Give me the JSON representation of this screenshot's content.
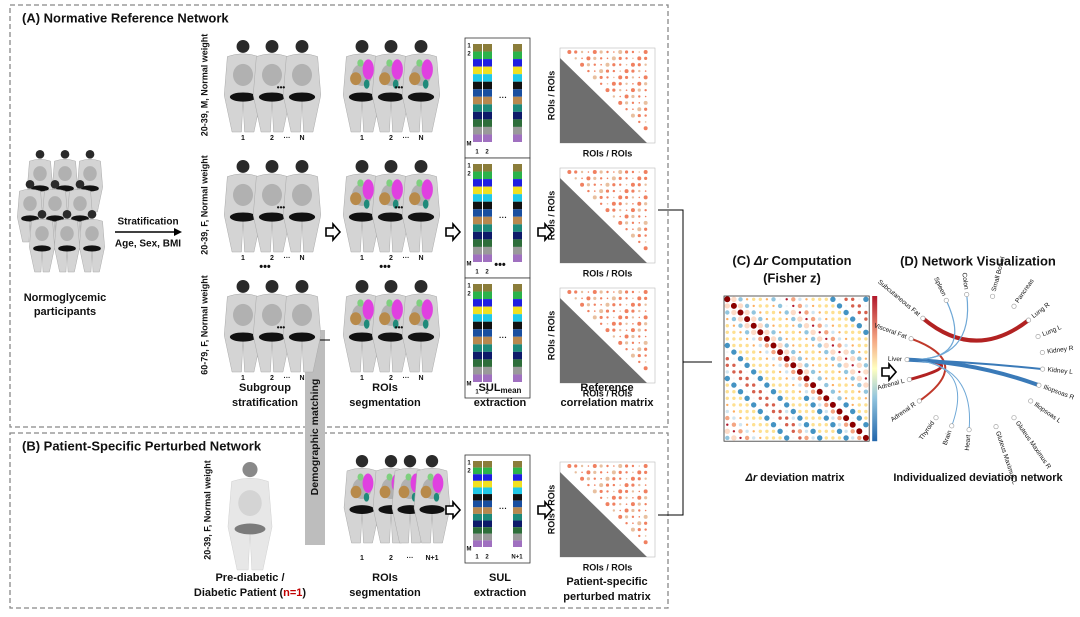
{
  "panel_a": {
    "title": "(A) Normative Reference Network"
  },
  "panel_b": {
    "title": "(B) Patient-Specific Perturbed Network"
  },
  "panel_c": {
    "title_prefix": "(C) ",
    "title_symbol": "Δr",
    "title_rest": " Computation",
    "subtitle": "(Fisher z)",
    "caption_symbol": "Δr",
    "caption_rest": " deviation matrix"
  },
  "panel_d": {
    "title": "(D) Network Visualization",
    "caption": "Individualized deviation network",
    "nodes": [
      "Spleen",
      "Colon",
      "Small Bowel",
      "Pancreas",
      "Lung R",
      "Lung L",
      "Kidney R",
      "Kidney L",
      "Iliopsoas R",
      "Iliopsoas L",
      "Gluteus Maximus R",
      "Gluteus Maximus L",
      "Heart",
      "Brain",
      "Thyroid",
      "Adrenal R",
      "Adrenal L",
      "Liver",
      "Visceral Fat",
      "Subcutaneous Fat"
    ]
  },
  "cohort": [
    "Normoglycemic",
    "participants"
  ],
  "stratification": {
    "label": "Stratification",
    "criteria": "Age, Sex, BMI"
  },
  "subgroups": [
    "20-39, M, Normal weight",
    "20-39, F, Normal weight",
    "60-79, F, Normal weight"
  ],
  "patient_group": "20-39, F, Normal weight",
  "subject_labels": [
    "1",
    "2",
    "···",
    "N"
  ],
  "new_subject_label": "N+1",
  "roi_labels": [
    "1",
    "2",
    "M"
  ],
  "ellipsis": "•••",
  "steps": {
    "stratification": [
      "Subgroup",
      "stratification"
    ],
    "segmentation": [
      "ROIs",
      "segmentation"
    ],
    "sul_mean": {
      "base": "SUL",
      "sub": "mean",
      "rest": "extraction"
    },
    "reference": [
      "Reference",
      "correlation matrix"
    ]
  },
  "patient_steps": {
    "label": [
      "Pre-diabetic /",
      "Diabetic Patient (",
      "n=1",
      ")"
    ],
    "sul": [
      "SUL",
      "extraction"
    ],
    "matrix": [
      "Patient-specific",
      "perturbed matrix"
    ]
  },
  "axis_label": "ROIs / ROIs",
  "demographic_matching": "Demographic matching"
}
